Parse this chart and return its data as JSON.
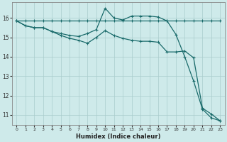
{
  "bg_color": "#ceeaea",
  "grid_color": "#aacccc",
  "line_color": "#1a6b6b",
  "xlabel": "Humidex (Indice chaleur)",
  "xticks": [
    0,
    1,
    2,
    3,
    4,
    5,
    6,
    7,
    8,
    9,
    10,
    11,
    12,
    13,
    14,
    15,
    16,
    17,
    18,
    19,
    20,
    21,
    22,
    23
  ],
  "yticks": [
    11,
    12,
    13,
    14,
    15,
    16
  ],
  "xlim": [
    -0.5,
    23.5
  ],
  "ylim": [
    10.5,
    16.8
  ],
  "line1_x": [
    0,
    1,
    2,
    3,
    4,
    5,
    6,
    7,
    8,
    9,
    10,
    11,
    12,
    13,
    14,
    15,
    16,
    17,
    18,
    19,
    20,
    21,
    22,
    23
  ],
  "line1_y": [
    15.85,
    15.85,
    15.85,
    15.85,
    15.85,
    15.85,
    15.85,
    15.85,
    15.85,
    15.85,
    15.85,
    15.85,
    15.85,
    15.85,
    15.85,
    15.85,
    15.85,
    15.85,
    15.85,
    15.85,
    15.85,
    15.85,
    15.85,
    15.85
  ],
  "line2_x": [
    0,
    1,
    2,
    3,
    4,
    5,
    6,
    7,
    8,
    9,
    10,
    11,
    12,
    13,
    14,
    15,
    16,
    17,
    18,
    19,
    20,
    21,
    22,
    23
  ],
  "line2_y": [
    15.85,
    15.6,
    15.5,
    15.5,
    15.3,
    15.2,
    15.1,
    15.05,
    15.2,
    15.4,
    16.5,
    16.0,
    15.9,
    16.1,
    16.1,
    16.1,
    16.05,
    15.85,
    15.15,
    14.0,
    12.75,
    11.3,
    10.85,
    10.7
  ],
  "line3_x": [
    0,
    1,
    2,
    3,
    4,
    5,
    6,
    7,
    8,
    9,
    10,
    11,
    12,
    13,
    14,
    15,
    16,
    17,
    18,
    19,
    20,
    21,
    22,
    23
  ],
  "line3_y": [
    15.85,
    15.6,
    15.5,
    15.5,
    15.3,
    15.1,
    14.95,
    14.85,
    14.7,
    15.0,
    15.35,
    15.1,
    14.95,
    14.85,
    14.8,
    14.8,
    14.75,
    14.25,
    14.25,
    14.3,
    13.95,
    11.35,
    11.05,
    10.7
  ]
}
